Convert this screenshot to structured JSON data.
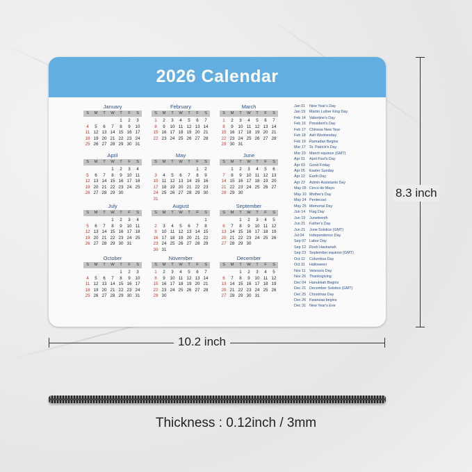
{
  "title": "2026 Calendar",
  "year": 2026,
  "weekdays": [
    "S",
    "M",
    "T",
    "W",
    "T",
    "F",
    "S"
  ],
  "months": [
    "January",
    "February",
    "March",
    "April",
    "May",
    "June",
    "July",
    "August",
    "September",
    "October",
    "November",
    "December"
  ],
  "holidays": [
    [
      "Jan 01",
      "New Year's Day"
    ],
    [
      "Jan 19",
      "Martin Luther King Day"
    ],
    [
      "Feb 14",
      "Valentine's Day"
    ],
    [
      "Feb 16",
      "President's Day"
    ],
    [
      "Feb 17",
      "Chinese New Year"
    ],
    [
      "Feb 18",
      "Ash Wednesday"
    ],
    [
      "Feb 19",
      "Ramadan Begins"
    ],
    [
      "Mar 17",
      "St. Patrick's Day"
    ],
    [
      "Mar 20",
      "March equinox (GMT)"
    ],
    [
      "Apr 01",
      "April Fool's Day"
    ],
    [
      "Apr 03",
      "Good Friday"
    ],
    [
      "Apr 05",
      "Easter Sunday"
    ],
    [
      "Apr 22",
      "Earth Day"
    ],
    [
      "Apr 22",
      "Admin Assistants Day"
    ],
    [
      "May 05",
      "Cinco de Mayo"
    ],
    [
      "May 10",
      "Mother's Day"
    ],
    [
      "May 24",
      "Pentecost"
    ],
    [
      "May 25",
      "Memorial Day"
    ],
    [
      "Jun 14",
      "Flag Day"
    ],
    [
      "Jun 19",
      "Juneteenth"
    ],
    [
      "Jun 21",
      "Father's Day"
    ],
    [
      "Jun 21",
      "June Solstice (GMT)"
    ],
    [
      "Jul 04",
      "Independence Day"
    ],
    [
      "Sep 07",
      "Labor Day"
    ],
    [
      "Sep 12",
      "Rosh Hashanah"
    ],
    [
      "Sep 23",
      "September equinox (GMT)"
    ],
    [
      "Oct 12",
      "Columbus Day"
    ],
    [
      "Oct 31",
      "Halloween"
    ],
    [
      "Nov 11",
      "Veterans Day"
    ],
    [
      "Nov 26",
      "Thanksgiving"
    ],
    [
      "Dec 04",
      "Hanukkah Begins"
    ],
    [
      "Dec 21",
      "December Solstice (GMT)"
    ],
    [
      "Dec 25",
      "Christmas Day"
    ],
    [
      "Dec 26",
      "Kwanzaa begins"
    ],
    [
      "Dec 31",
      "New Year's Eve"
    ]
  ],
  "dimensions": {
    "height": "8.3 inch",
    "width": "10.2 inch",
    "thickness": "Thickness : 0.12inch / 3mm"
  },
  "colors": {
    "header": "#62aee0",
    "month_title": "#2a4f8a",
    "sunday": "#c0392b"
  }
}
